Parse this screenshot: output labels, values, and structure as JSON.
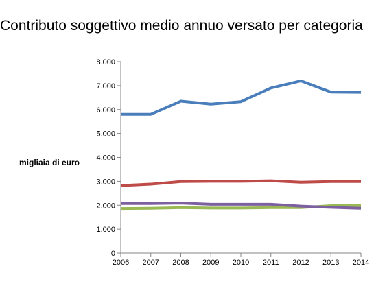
{
  "chart_data": {
    "type": "line",
    "title": "Contributo soggettivo medio annuo versato per categoria",
    "xlabel": "",
    "ylabel": "migliaia di euro",
    "x": [
      "2006",
      "2007",
      "2008",
      "2009",
      "2010",
      "2011",
      "2012",
      "2013",
      "2014"
    ],
    "y_ticks": [
      "0",
      "1.000",
      "2.000",
      "3.000",
      "4.000",
      "5.000",
      "6.000",
      "7.000",
      "8.000"
    ],
    "ylim": [
      0,
      8000
    ],
    "grid": false,
    "legend": "none",
    "series": [
      {
        "color": "#4a7ebb",
        "values": [
          5800,
          5800,
          6350,
          6230,
          6330,
          6900,
          7200,
          6730,
          6720
        ]
      },
      {
        "color": "#be4b48",
        "values": [
          2820,
          2880,
          2990,
          3000,
          3000,
          3020,
          2960,
          2990,
          2990
        ]
      },
      {
        "color": "#98b954",
        "values": [
          1860,
          1870,
          1900,
          1880,
          1880,
          1900,
          1900,
          1980,
          1980
        ]
      },
      {
        "color": "#7d60a0",
        "values": [
          2070,
          2070,
          2090,
          2040,
          2040,
          2040,
          1960,
          1910,
          1870
        ]
      }
    ]
  }
}
